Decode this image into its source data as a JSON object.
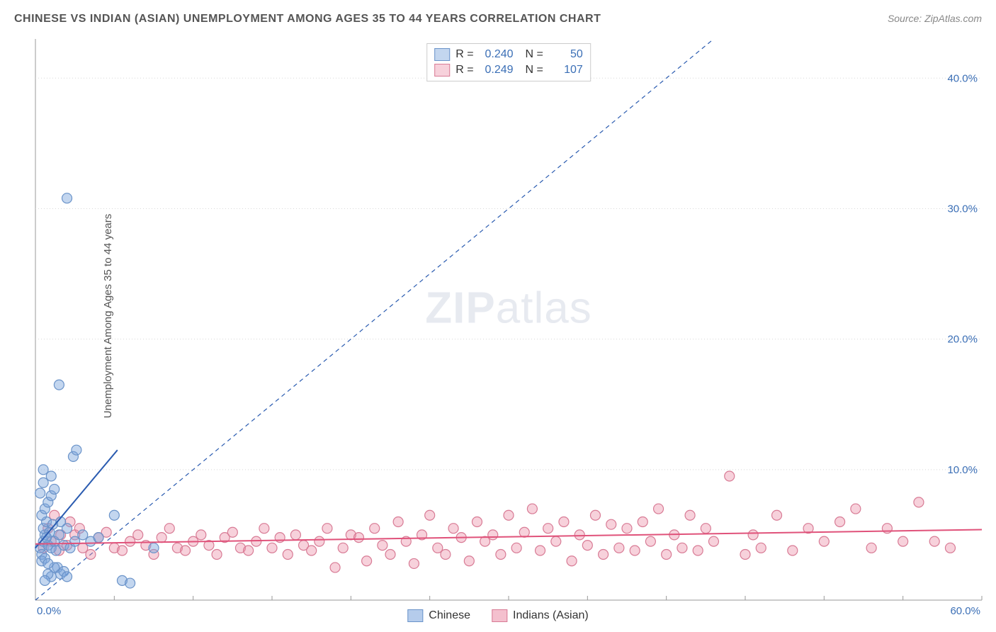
{
  "header": {
    "title": "CHINESE VS INDIAN (ASIAN) UNEMPLOYMENT AMONG AGES 35 TO 44 YEARS CORRELATION CHART",
    "source": "Source: ZipAtlas.com"
  },
  "chart": {
    "type": "scatter",
    "background_color": "#ffffff",
    "grid_color": "#d8d8d8",
    "axis_color": "#999999",
    "tick_label_color": "#3b6fb6",
    "y_label": "Unemployment Among Ages 35 to 44 years",
    "y_label_fontsize": 15,
    "x_label": "",
    "xlim": [
      0,
      60
    ],
    "ylim": [
      0,
      43
    ],
    "x_ticks": [
      0,
      5,
      10,
      15,
      20,
      25,
      30,
      35,
      40,
      45,
      50,
      55,
      60
    ],
    "x_tick_labels_shown": {
      "0": "0.0%",
      "60": "60.0%"
    },
    "y_gridlines": [
      10,
      20,
      30,
      40
    ],
    "y_tick_labels": {
      "10": "10.0%",
      "20": "20.0%",
      "30": "30.0%",
      "40": "40.0%"
    },
    "watermark": {
      "text_bold": "ZIP",
      "text_light": "atlas",
      "color": "rgba(120,140,170,0.18)",
      "fontsize": 62
    },
    "series": [
      {
        "name": "Chinese",
        "marker_color_fill": "rgba(121,163,220,0.45)",
        "marker_color_stroke": "#6a93c9",
        "marker_radius": 7,
        "trend_line": {
          "x1": 0,
          "y1": 4.0,
          "x2": 5.2,
          "y2": 11.5,
          "color": "#2a5bb0",
          "width": 2,
          "dash": "none"
        },
        "ref_line": {
          "x1": 0,
          "y1": 0,
          "x2": 43,
          "y2": 43,
          "color": "#2a5bb0",
          "width": 1.2,
          "dash": "6,5"
        },
        "R": "0.240",
        "N": "50",
        "points": [
          [
            0.3,
            4.0
          ],
          [
            0.5,
            4.5
          ],
          [
            0.4,
            3.5
          ],
          [
            0.6,
            5.0
          ],
          [
            0.8,
            4.2
          ],
          [
            0.5,
            5.5
          ],
          [
            0.7,
            6.0
          ],
          [
            0.9,
            5.2
          ],
          [
            0.4,
            6.5
          ],
          [
            0.6,
            7.0
          ],
          [
            0.8,
            7.5
          ],
          [
            1.0,
            8.0
          ],
          [
            1.2,
            8.5
          ],
          [
            0.3,
            8.2
          ],
          [
            0.5,
            9.0
          ],
          [
            1.0,
            4.0
          ],
          [
            1.2,
            4.5
          ],
          [
            1.5,
            5.0
          ],
          [
            1.3,
            3.8
          ],
          [
            1.8,
            4.2
          ],
          [
            2.0,
            5.5
          ],
          [
            2.2,
            4.0
          ],
          [
            2.5,
            4.5
          ],
          [
            1.6,
            6.0
          ],
          [
            1.4,
            2.5
          ],
          [
            1.6,
            2.0
          ],
          [
            1.8,
            2.2
          ],
          [
            2.0,
            1.8
          ],
          [
            1.2,
            2.5
          ],
          [
            1.0,
            1.8
          ],
          [
            0.8,
            2.0
          ],
          [
            0.6,
            1.5
          ],
          [
            2.4,
            11.0
          ],
          [
            2.6,
            11.5
          ],
          [
            1.5,
            16.5
          ],
          [
            2.0,
            30.8
          ],
          [
            3.0,
            5.0
          ],
          [
            3.5,
            4.5
          ],
          [
            4.0,
            4.8
          ],
          [
            5.0,
            6.5
          ],
          [
            5.5,
            1.5
          ],
          [
            6.0,
            1.3
          ],
          [
            7.5,
            4.0
          ],
          [
            0.4,
            3.0
          ],
          [
            0.6,
            3.2
          ],
          [
            0.8,
            2.8
          ],
          [
            1.0,
            9.5
          ],
          [
            0.5,
            10.0
          ],
          [
            0.7,
            4.8
          ],
          [
            1.1,
            5.8
          ]
        ]
      },
      {
        "name": "Indians (Asian)",
        "marker_color_fill": "rgba(235,140,165,0.40)",
        "marker_color_stroke": "#d87b95",
        "marker_radius": 7,
        "trend_line": {
          "x1": 0,
          "y1": 4.3,
          "x2": 60,
          "y2": 5.4,
          "color": "#e0527a",
          "width": 2,
          "dash": "none"
        },
        "R": "0.249",
        "N": "107",
        "points": [
          [
            0.5,
            4.0
          ],
          [
            1.0,
            4.5
          ],
          [
            1.5,
            3.8
          ],
          [
            2.0,
            4.2
          ],
          [
            2.5,
            5.0
          ],
          [
            3.0,
            4.0
          ],
          [
            3.5,
            3.5
          ],
          [
            4.0,
            4.8
          ],
          [
            4.5,
            5.2
          ],
          [
            5.0,
            4.0
          ],
          [
            5.5,
            3.8
          ],
          [
            6.0,
            4.5
          ],
          [
            6.5,
            5.0
          ],
          [
            7.0,
            4.2
          ],
          [
            7.5,
            3.5
          ],
          [
            8.0,
            4.8
          ],
          [
            8.5,
            5.5
          ],
          [
            9.0,
            4.0
          ],
          [
            9.5,
            3.8
          ],
          [
            10.0,
            4.5
          ],
          [
            10.5,
            5.0
          ],
          [
            11.0,
            4.2
          ],
          [
            11.5,
            3.5
          ],
          [
            12.0,
            4.8
          ],
          [
            12.5,
            5.2
          ],
          [
            13.0,
            4.0
          ],
          [
            13.5,
            3.8
          ],
          [
            14.0,
            4.5
          ],
          [
            14.5,
            5.5
          ],
          [
            15.0,
            4.0
          ],
          [
            15.5,
            4.8
          ],
          [
            16.0,
            3.5
          ],
          [
            16.5,
            5.0
          ],
          [
            17.0,
            4.2
          ],
          [
            17.5,
            3.8
          ],
          [
            18.0,
            4.5
          ],
          [
            18.5,
            5.5
          ],
          [
            19.0,
            2.5
          ],
          [
            19.5,
            4.0
          ],
          [
            20.0,
            5.0
          ],
          [
            20.5,
            4.8
          ],
          [
            21.0,
            3.0
          ],
          [
            21.5,
            5.5
          ],
          [
            22.0,
            4.2
          ],
          [
            22.5,
            3.5
          ],
          [
            23.0,
            6.0
          ],
          [
            23.5,
            4.5
          ],
          [
            24.0,
            2.8
          ],
          [
            24.5,
            5.0
          ],
          [
            25.0,
            6.5
          ],
          [
            25.5,
            4.0
          ],
          [
            26.0,
            3.5
          ],
          [
            26.5,
            5.5
          ],
          [
            27.0,
            4.8
          ],
          [
            27.5,
            3.0
          ],
          [
            28.0,
            6.0
          ],
          [
            28.5,
            4.5
          ],
          [
            29.0,
            5.0
          ],
          [
            29.5,
            3.5
          ],
          [
            30.0,
            6.5
          ],
          [
            30.5,
            4.0
          ],
          [
            31.0,
            5.2
          ],
          [
            31.5,
            7.0
          ],
          [
            32.0,
            3.8
          ],
          [
            32.5,
            5.5
          ],
          [
            33.0,
            4.5
          ],
          [
            33.5,
            6.0
          ],
          [
            34.0,
            3.0
          ],
          [
            34.5,
            5.0
          ],
          [
            35.0,
            4.2
          ],
          [
            35.5,
            6.5
          ],
          [
            36.0,
            3.5
          ],
          [
            36.5,
            5.8
          ],
          [
            37.0,
            4.0
          ],
          [
            37.5,
            5.5
          ],
          [
            38.0,
            3.8
          ],
          [
            38.5,
            6.0
          ],
          [
            39.0,
            4.5
          ],
          [
            39.5,
            7.0
          ],
          [
            40.0,
            3.5
          ],
          [
            40.5,
            5.0
          ],
          [
            41.0,
            4.0
          ],
          [
            41.5,
            6.5
          ],
          [
            42.0,
            3.8
          ],
          [
            42.5,
            5.5
          ],
          [
            43.0,
            4.5
          ],
          [
            44.0,
            9.5
          ],
          [
            45.0,
            3.5
          ],
          [
            45.5,
            5.0
          ],
          [
            46.0,
            4.0
          ],
          [
            47.0,
            6.5
          ],
          [
            48.0,
            3.8
          ],
          [
            49.0,
            5.5
          ],
          [
            50.0,
            4.5
          ],
          [
            51.0,
            6.0
          ],
          [
            52.0,
            7.0
          ],
          [
            53.0,
            4.0
          ],
          [
            54.0,
            5.5
          ],
          [
            55.0,
            4.5
          ],
          [
            56.0,
            7.5
          ],
          [
            57.0,
            4.5
          ],
          [
            58.0,
            4.0
          ],
          [
            0.8,
            5.5
          ],
          [
            1.2,
            6.5
          ],
          [
            1.6,
            5.0
          ],
          [
            2.2,
            6.0
          ],
          [
            2.8,
            5.5
          ]
        ]
      }
    ],
    "legend_bottom": [
      {
        "swatch_fill": "rgba(121,163,220,0.55)",
        "swatch_stroke": "#6a93c9",
        "label": "Chinese"
      },
      {
        "swatch_fill": "rgba(235,140,165,0.55)",
        "swatch_stroke": "#d87b95",
        "label": "Indians (Asian)"
      }
    ]
  }
}
